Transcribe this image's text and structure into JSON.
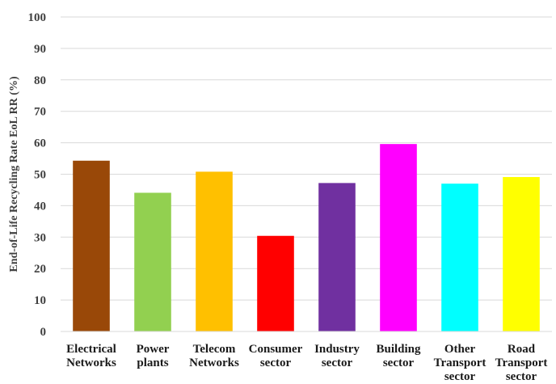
{
  "chart_data": {
    "type": "bar",
    "ylabel": "End-of-Life Recycling Rate EoL RR (%)",
    "xlabel": "",
    "ylim": [
      0,
      100
    ],
    "yticks": [
      0,
      10,
      20,
      30,
      40,
      50,
      60,
      70,
      80,
      90,
      100
    ],
    "grid": true,
    "categories": [
      [
        "Electrical",
        "Networks"
      ],
      [
        "Power",
        "plants"
      ],
      [
        "Telecom",
        "Networks"
      ],
      [
        "Consumer",
        "sector"
      ],
      [
        "Industry",
        "sector"
      ],
      [
        "Building",
        "sector"
      ],
      [
        "Other",
        "Transport",
        "sector"
      ],
      [
        "Road",
        "Transport",
        "sector"
      ]
    ],
    "values": [
      54.3,
      44.1,
      50.8,
      30.4,
      47.2,
      59.6,
      47.0,
      49.1
    ],
    "colors": [
      "#994808",
      "#92d050",
      "#ffc000",
      "#ff0000",
      "#7030a0",
      "#ff00ff",
      "#00ffff",
      "#ffff00"
    ]
  }
}
